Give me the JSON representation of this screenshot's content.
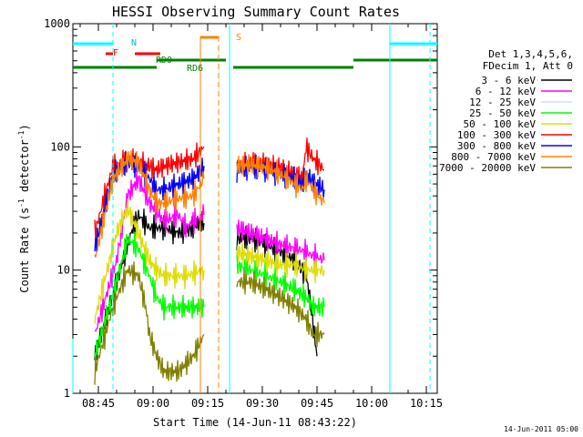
{
  "chart_data": {
    "type": "line",
    "title": "HESSI Observing Summary Count Rates",
    "xlabel": "Start Time (14-Jun-11 08:43:22)",
    "ylabel_main": "Count Rate (s",
    "ylabel_mid": " detector",
    "ylabel_end": ")",
    "ylabel_sup": "-1",
    "yscale": "log",
    "ylim": [
      1,
      1000
    ],
    "xlim_minutes": [
      -7,
      93
    ],
    "x_ticks": [
      "08:45",
      "09:00",
      "09:15",
      "09:30",
      "09:45",
      "10:00",
      "10:15"
    ],
    "x_tick_minutes": [
      0,
      15,
      30,
      45,
      60,
      75,
      90
    ],
    "y_ticks": [
      "1",
      "10",
      "100",
      "1000"
    ],
    "y_tick_values": [
      1,
      10,
      100,
      1000
    ],
    "legend_header_1": "Det 1,3,4,5,6,",
    "legend_header_2": "FDecim 1, Att 0",
    "series": [
      {
        "name": "3 - 6 keV",
        "color": "#000000",
        "segments": [
          [
            [
              -1,
              2
            ],
            [
              5,
              8
            ],
            [
              9,
              20
            ],
            [
              11,
              28
            ],
            [
              14,
              22
            ],
            [
              18,
              22
            ],
            [
              22,
              20
            ],
            [
              26,
              22
            ],
            [
              28,
              25
            ],
            [
              29,
              24
            ]
          ],
          [
            [
              38,
              18
            ],
            [
              42,
              18
            ],
            [
              46,
              16
            ],
            [
              50,
              14
            ],
            [
              54,
              12
            ],
            [
              57,
              9
            ],
            [
              58,
              6
            ],
            [
              60,
              2
            ]
          ]
        ]
      },
      {
        "name": "6 - 12 keV",
        "color": "#ff00ff",
        "segments": [
          [
            [
              -1,
              3
            ],
            [
              5,
              12
            ],
            [
              8,
              40
            ],
            [
              11,
              55
            ],
            [
              14,
              35
            ],
            [
              18,
              25
            ],
            [
              22,
              28
            ],
            [
              24,
              22
            ],
            [
              26,
              25
            ],
            [
              29,
              28
            ]
          ],
          [
            [
              38,
              22
            ],
            [
              42,
              20
            ],
            [
              46,
              18
            ],
            [
              50,
              16
            ],
            [
              54,
              15
            ],
            [
              57,
              14
            ],
            [
              59,
              13
            ],
            [
              62,
              12
            ]
          ]
        ]
      },
      {
        "name": "12 - 25 keV",
        "color": "#ccddff",
        "segments": []
      },
      {
        "name": "25 - 50 keV",
        "color": "#00ff00",
        "segments": [
          [
            [
              -1,
              2
            ],
            [
              5,
              8
            ],
            [
              8,
              18
            ],
            [
              11,
              15
            ],
            [
              14,
              9
            ],
            [
              16,
              6
            ],
            [
              18,
              5
            ],
            [
              24,
              5
            ],
            [
              29,
              5
            ]
          ],
          [
            [
              38,
              11
            ],
            [
              42,
              10
            ],
            [
              46,
              9
            ],
            [
              50,
              8
            ],
            [
              54,
              7
            ],
            [
              57,
              6
            ],
            [
              59,
              5
            ],
            [
              62,
              5
            ]
          ]
        ]
      },
      {
        "name": "50 - 100 keV",
        "color": "#dddd00",
        "segments": [
          [
            [
              -1,
              4
            ],
            [
              5,
              20
            ],
            [
              8,
              32
            ],
            [
              11,
              20
            ],
            [
              14,
              12
            ],
            [
              16,
              10
            ],
            [
              18,
              9
            ],
            [
              24,
              9
            ],
            [
              29,
              10
            ]
          ],
          [
            [
              38,
              14
            ],
            [
              42,
              13
            ],
            [
              46,
              12
            ],
            [
              50,
              11
            ],
            [
              54,
              11
            ],
            [
              57,
              10
            ],
            [
              59,
              10
            ],
            [
              62,
              10
            ]
          ]
        ]
      },
      {
        "name": "100 - 300 keV",
        "color": "#ff0000",
        "segments": [
          [
            [
              -1,
              20
            ],
            [
              4,
              70
            ],
            [
              8,
              78
            ],
            [
              11,
              75
            ],
            [
              14,
              70
            ],
            [
              16,
              65
            ],
            [
              18,
              70
            ],
            [
              22,
              75
            ],
            [
              26,
              80
            ],
            [
              29,
              100
            ]
          ],
          [
            [
              38,
              70
            ],
            [
              42,
              75
            ],
            [
              46,
              72
            ],
            [
              50,
              68
            ],
            [
              54,
              60
            ],
            [
              56,
              55
            ],
            [
              57,
              100
            ],
            [
              59,
              80
            ],
            [
              62,
              65
            ]
          ]
        ]
      },
      {
        "name": "300 - 800 keV",
        "color": "#0000ff",
        "segments": [
          [
            [
              -1,
              15
            ],
            [
              4,
              60
            ],
            [
              8,
              75
            ],
            [
              11,
              70
            ],
            [
              14,
              55
            ],
            [
              16,
              45
            ],
            [
              18,
              45
            ],
            [
              22,
              50
            ],
            [
              26,
              55
            ],
            [
              29,
              70
            ]
          ],
          [
            [
              38,
              65
            ],
            [
              42,
              68
            ],
            [
              46,
              65
            ],
            [
              50,
              60
            ],
            [
              54,
              55
            ],
            [
              56,
              50
            ],
            [
              57,
              60
            ],
            [
              59,
              52
            ],
            [
              62,
              45
            ]
          ]
        ]
      },
      {
        "name": "800 - 7000 keV",
        "color": "#ff8000",
        "segments": [
          [
            [
              -1,
              12
            ],
            [
              4,
              55
            ],
            [
              8,
              80
            ],
            [
              11,
              75
            ],
            [
              14,
              45
            ],
            [
              16,
              35
            ],
            [
              18,
              35
            ],
            [
              22,
              38
            ],
            [
              26,
              40
            ],
            [
              29,
              55
            ]
          ],
          [
            [
              38,
              70
            ],
            [
              42,
              72
            ],
            [
              46,
              68
            ],
            [
              50,
              60
            ],
            [
              54,
              50
            ],
            [
              56,
              45
            ],
            [
              57,
              55
            ],
            [
              59,
              45
            ],
            [
              62,
              35
            ]
          ]
        ]
      },
      {
        "name": "7000 - 20000 keV",
        "color": "#808000",
        "segments": [
          [
            [
              -1,
              1.5
            ],
            [
              4,
              5
            ],
            [
              8,
              10
            ],
            [
              11,
              9
            ],
            [
              13,
              5
            ],
            [
              14,
              3
            ],
            [
              16,
              2
            ],
            [
              18,
              1.5
            ],
            [
              22,
              1.5
            ],
            [
              26,
              2
            ],
            [
              29,
              3
            ]
          ],
          [
            [
              38,
              8
            ],
            [
              42,
              8
            ],
            [
              46,
              7
            ],
            [
              50,
              6
            ],
            [
              54,
              5
            ],
            [
              57,
              4
            ],
            [
              59,
              3
            ],
            [
              62,
              3
            ]
          ]
        ]
      }
    ],
    "annotations": {
      "N": "N",
      "F": "F",
      "RD0": "RD0",
      "RD6": "RD6",
      "S": "S"
    },
    "timestamp": "14-Jun-2011 05:00"
  }
}
